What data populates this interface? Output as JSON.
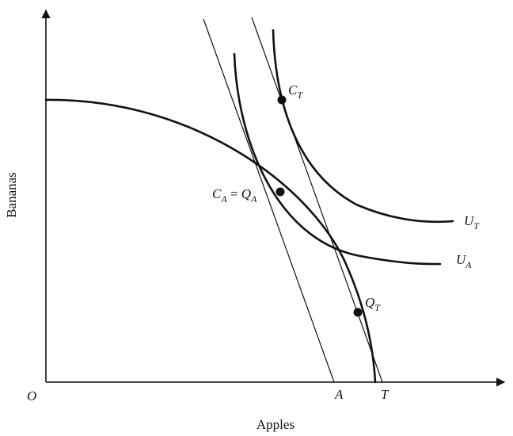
{
  "axes": {
    "x_label": "Apples",
    "y_label": "Bananas",
    "origin_label": "O"
  },
  "intercepts": {
    "a": "A",
    "t": "T"
  },
  "points": {
    "c_t": {
      "base": "C",
      "sub": "T"
    },
    "c_a_eq_q_a": {
      "c": "C",
      "c_sub": "A",
      "eq": " = ",
      "q": "Q",
      "q_sub": "A"
    },
    "q_t": {
      "base": "Q",
      "sub": "T"
    }
  },
  "curves": {
    "u_t": {
      "base": "U",
      "sub": "T"
    },
    "u_a": {
      "base": "U",
      "sub": "A"
    }
  },
  "colors": {
    "ink": "#111111",
    "background": "#ffffff"
  }
}
